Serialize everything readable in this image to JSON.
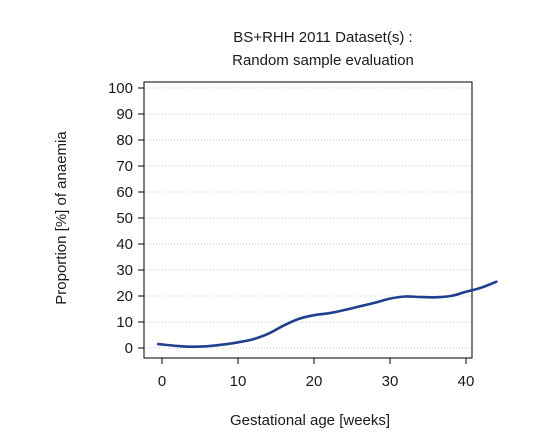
{
  "chart_data": {
    "type": "line",
    "title_lines": [
      "BS+RHH 2011 Dataset(s) :",
      "Random sample evaluation"
    ],
    "xlabel": "Gestational age [weeks]",
    "ylabel": "Proportion [%] of anaemia",
    "xlim": [
      -1,
      44
    ],
    "ylim": [
      0,
      100
    ],
    "xticks": [
      0,
      10,
      20,
      30,
      40
    ],
    "yticks": [
      0,
      10,
      20,
      30,
      40,
      50,
      60,
      70,
      80,
      90,
      100
    ],
    "grid": "horizontal dotted",
    "series": [
      {
        "color": "#1f3f8f",
        "x": [
          -0.5,
          2,
          4,
          6,
          8,
          10,
          12,
          14,
          16,
          18,
          20,
          22,
          24,
          26,
          28,
          30,
          32,
          34,
          36,
          38,
          40,
          42,
          44
        ],
        "y": [
          1.5,
          0.8,
          0.5,
          0.7,
          1.3,
          2.2,
          3.4,
          5.5,
          8.6,
          11.2,
          12.6,
          13.4,
          14.6,
          16.0,
          17.4,
          19.0,
          19.8,
          19.6,
          19.5,
          20.0,
          21.6,
          23.2,
          25.5
        ]
      }
    ]
  }
}
